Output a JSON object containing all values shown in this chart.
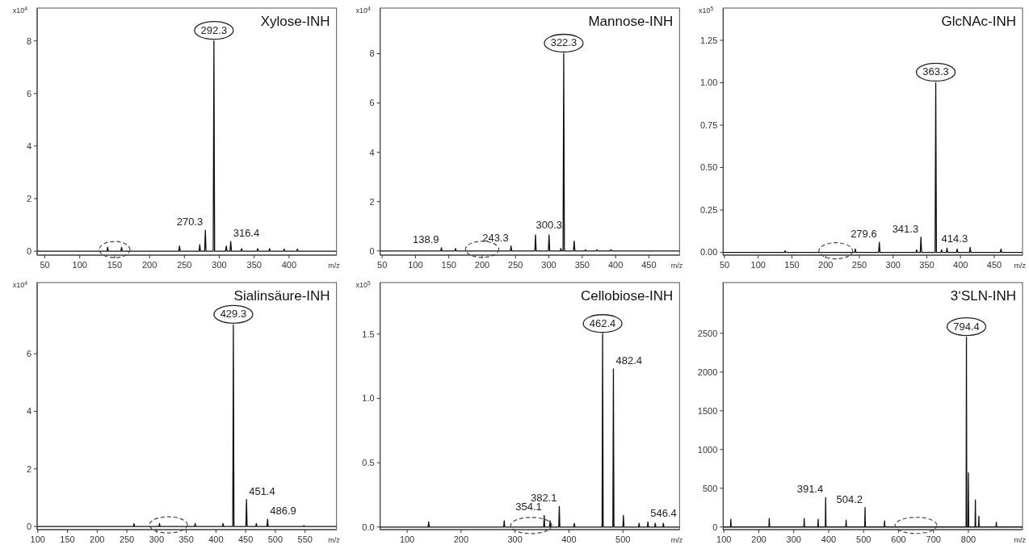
{
  "chart_data": [
    {
      "type": "line",
      "title": "Xylose-INH",
      "xlabel": "m/z",
      "ylabel": "x10$^{4}$",
      "xlim": [
        39,
        468
      ],
      "ylim": [
        -0.15,
        9.25
      ],
      "xticks": [
        50,
        100,
        150,
        200,
        250,
        300,
        350,
        400
      ],
      "yticks": [
        0,
        2,
        4,
        6,
        8
      ],
      "annotations": [
        {
          "text": "292.3",
          "x": 292.3,
          "y": 8.0
        },
        {
          "text": "270.3",
          "x": 280,
          "y": 0.8
        },
        {
          "text": "316.4",
          "x": 316.4,
          "y": 0.37
        }
      ],
      "series": [
        {
          "color": "#111111",
          "x": [
            39,
            139,
            140,
            141,
            159,
            160,
            161,
            242,
            243,
            244,
            271,
            272,
            273,
            279,
            280,
            281,
            291.3,
            292.3,
            293.3,
            309,
            310,
            311,
            315.4,
            316.4,
            317.4,
            331,
            332,
            333,
            354,
            355,
            356,
            371,
            372,
            373,
            392,
            393,
            394,
            411,
            412,
            413,
            468
          ],
          "values": [
            0,
            0,
            0.15,
            0,
            0,
            0.15,
            0,
            0,
            0.2,
            0,
            0,
            0.25,
            0,
            0,
            0.8,
            0,
            0,
            8.0,
            0,
            0,
            0.2,
            0,
            0,
            0.37,
            0,
            0,
            0.1,
            0,
            0,
            0.1,
            0,
            0,
            0.1,
            0,
            0,
            0.08,
            0,
            0,
            0.08,
            0,
            0
          ]
        }
      ]
    },
    {
      "type": "line",
      "title": "Mannose-INH",
      "xlabel": "m/z",
      "ylabel": "x10$^{4}$",
      "xlim": [
        47,
        496
      ],
      "ylim": [
        -0.17,
        9.85
      ],
      "xticks": [
        50,
        100,
        150,
        200,
        250,
        300,
        350,
        400,
        450
      ],
      "yticks": [
        0,
        2,
        4,
        6,
        8
      ],
      "annotations": [
        {
          "text": "322.3",
          "x": 322.3,
          "y": 8.0
        },
        {
          "text": "138.9",
          "x": 138.9,
          "y": 0.13
        },
        {
          "text": "243.3",
          "x": 243.3,
          "y": 0.2
        },
        {
          "text": "300.3",
          "x": 300.3,
          "y": 0.65
        }
      ],
      "series": [
        {
          "color": "#111111",
          "x": [
            47,
            137.9,
            138.9,
            139.9,
            159,
            160,
            161,
            242.3,
            243.3,
            244.3,
            279,
            280,
            281,
            299.3,
            300.3,
            301.3,
            317,
            318,
            319,
            321.3,
            322.3,
            323.3,
            337,
            338,
            339,
            354,
            355,
            356,
            371,
            372,
            373,
            392,
            393,
            394,
            496
          ],
          "values": [
            0,
            0,
            0.13,
            0,
            0,
            0.1,
            0,
            0,
            0.2,
            0,
            0,
            0.65,
            0,
            0,
            0.65,
            0,
            0,
            0.1,
            0,
            0,
            8.0,
            0,
            0,
            0.4,
            0,
            0,
            0.05,
            0,
            0,
            0.05,
            0,
            0,
            0.05,
            0,
            0
          ]
        }
      ]
    },
    {
      "type": "line",
      "title": "GlcNAc-INH",
      "xlabel": "m/z",
      "ylabel": "x10$^{5}$",
      "xlim": [
        48,
        492
      ],
      "ylim": [
        -0.016,
        1.44
      ],
      "xticks": [
        50,
        100,
        150,
        200,
        250,
        300,
        350,
        400,
        450
      ],
      "yticks": [
        {
          "value": 0,
          "label": "0.00"
        },
        {
          "value": 0.25,
          "label": "0.25"
        },
        {
          "value": 0.5,
          "label": "0.50"
        },
        {
          "value": 0.75,
          "label": "0.75"
        },
        {
          "value": 1,
          "label": "1.00"
        },
        {
          "value": 1.25,
          "label": "1.25"
        }
      ],
      "annotations": [
        {
          "text": "363.3",
          "x": 363.3,
          "y": 1.0
        },
        {
          "text": "279.6",
          "x": 279.6,
          "y": 0.06
        },
        {
          "text": "341.3",
          "x": 341.3,
          "y": 0.09
        },
        {
          "text": "414.3",
          "x": 414.3,
          "y": 0.03
        }
      ],
      "series": [
        {
          "color": "#111111",
          "x": [
            48,
            139,
            140,
            141,
            243,
            244,
            245,
            278.6,
            279.6,
            280.6,
            334,
            335,
            336,
            340.3,
            341.3,
            342.3,
            362.3,
            363.3,
            364.3,
            371,
            372,
            373,
            379,
            380,
            381,
            394,
            395,
            396,
            413.3,
            414.3,
            415.3,
            459,
            460,
            461,
            492
          ],
          "values": [
            0,
            0,
            0.01,
            0,
            0,
            0.02,
            0,
            0,
            0.06,
            0,
            0,
            0.015,
            0,
            0,
            0.09,
            0,
            0,
            1.0,
            0,
            0,
            0.015,
            0,
            0,
            0.025,
            0,
            0,
            0.02,
            0,
            0,
            0.03,
            0,
            0,
            0.02,
            0,
            0
          ]
        }
      ]
    },
    {
      "type": "line",
      "title": "Sialinsäure-INH",
      "xlabel": "m/z",
      "ylabel": "x10$^{4}$",
      "xlim": [
        99,
        603
      ],
      "ylim": [
        -0.11,
        8.47
      ],
      "xticks": [
        100,
        150,
        200,
        250,
        300,
        350,
        400,
        450,
        500,
        550
      ],
      "yticks": [
        0,
        2,
        4,
        6
      ],
      "annotations": [
        {
          "text": "429.3",
          "x": 429.3,
          "y": 7.0
        },
        {
          "text": "451.4",
          "x": 451.4,
          "y": 0.94
        },
        {
          "text": "486.9",
          "x": 486.9,
          "y": 0.25
        }
      ],
      "series": [
        {
          "color": "#111111",
          "x": [
            99,
            261,
            262,
            263,
            304,
            305,
            306,
            364,
            365,
            366,
            411,
            412,
            413,
            428.3,
            429.3,
            430.3,
            450.4,
            451.4,
            452.4,
            467,
            468,
            469,
            485.9,
            486.9,
            487.9,
            547,
            548,
            549,
            603
          ],
          "values": [
            0,
            0,
            0.1,
            0,
            0,
            0.1,
            0,
            0,
            0.1,
            0,
            0,
            0.1,
            0,
            0,
            7.0,
            0,
            0,
            0.94,
            0,
            0,
            0.1,
            0,
            0,
            0.25,
            0,
            0,
            0.03,
            0,
            0
          ]
        }
      ]
    },
    {
      "type": "line",
      "title": "Cellobiose-INH",
      "xlabel": "m/z",
      "ylabel": "x10$^{5}$",
      "xlim": [
        50,
        605
      ],
      "ylim": [
        -0.02,
        1.9
      ],
      "xticks": [
        100,
        200,
        300,
        400,
        500
      ],
      "yticks": [
        {
          "value": 0,
          "label": "0.0"
        },
        {
          "value": 0.5,
          "label": "0.5"
        },
        {
          "value": 1,
          "label": "1.0"
        },
        {
          "value": 1.5,
          "label": "1.5"
        }
      ],
      "annotations": [
        {
          "text": "462.4",
          "x": 462.4,
          "y": 1.5
        },
        {
          "text": "482.4",
          "x": 482.4,
          "y": 1.23
        },
        {
          "text": "354.1",
          "x": 354.1,
          "y": 0.09
        },
        {
          "text": "382.1",
          "x": 382.1,
          "y": 0.16
        },
        {
          "text": "546.4",
          "x": 546.4,
          "y": 0.04
        }
      ],
      "series": [
        {
          "color": "#111111",
          "x": [
            50,
            139,
            140,
            141,
            279,
            280,
            281,
            353.1,
            354.1,
            355.1,
            364,
            365,
            366,
            381.1,
            382.1,
            383.1,
            409,
            410,
            411,
            461.4,
            462.4,
            463.4,
            481.4,
            482.4,
            483.4,
            500,
            501,
            502,
            529,
            530,
            531,
            545.4,
            546.4,
            547.4,
            559,
            560,
            561,
            574,
            575,
            576,
            605
          ],
          "values": [
            0,
            0,
            0.04,
            0,
            0,
            0.05,
            0,
            0,
            0.09,
            0,
            0,
            0.05,
            0,
            0,
            0.16,
            0,
            0,
            0.03,
            0,
            0,
            1.5,
            0,
            0,
            1.23,
            0,
            0,
            0.09,
            0,
            0,
            0.03,
            0,
            0,
            0.04,
            0,
            0,
            0.03,
            0,
            0,
            0.03,
            0,
            0
          ]
        }
      ]
    },
    {
      "type": "line",
      "title": "3‘SLN-INH",
      "xlabel": "m/z",
      "xlim": [
        98,
        955
      ],
      "ylim": [
        -34,
        3155
      ],
      "xticks": [
        100,
        200,
        300,
        400,
        500,
        600,
        700,
        800
      ],
      "yticks": [
        0,
        500,
        1000,
        1500,
        2000,
        2500
      ],
      "annotations": [
        {
          "text": "794.4",
          "x": 794.4,
          "y": 2450
        },
        {
          "text": "391.4",
          "x": 391.4,
          "y": 380
        },
        {
          "text": "504.2",
          "x": 504.2,
          "y": 250
        }
      ],
      "series": [
        {
          "color": "#111111",
          "x": [
            98,
            119,
            120,
            121,
            229,
            230,
            231,
            329,
            330,
            331,
            369,
            370,
            371,
            390.4,
            391.4,
            392.4,
            449,
            450,
            451,
            503.2,
            504.2,
            505.2,
            559,
            560,
            561,
            793.4,
            794.4,
            795.4,
            799,
            800,
            801,
            819,
            820,
            821,
            829,
            830,
            831,
            879,
            880,
            881,
            955
          ],
          "values": [
            0,
            0,
            100,
            0,
            0,
            110,
            0,
            0,
            110,
            0,
            0,
            100,
            0,
            0,
            380,
            0,
            0,
            90,
            0,
            0,
            250,
            0,
            0,
            80,
            0,
            0,
            2450,
            0,
            0,
            700,
            0,
            0,
            350,
            0,
            0,
            140,
            0,
            0,
            60,
            0,
            0
          ]
        }
      ]
    }
  ]
}
